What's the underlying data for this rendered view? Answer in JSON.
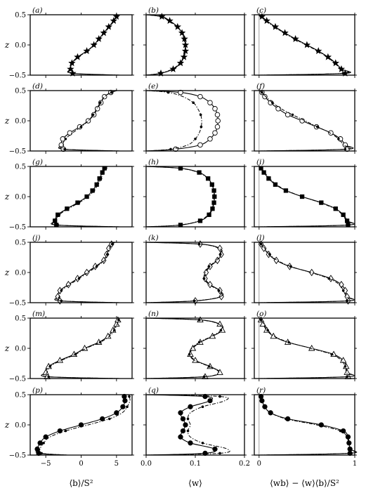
{
  "chart_data": {
    "type": "line",
    "layout": "6 rows x 3 columns of profile panels",
    "columns": [
      {
        "xlabel": "⟨b⟩/S²",
        "xlim": [
          -7.2,
          7.2
        ],
        "xticks": [
          -5,
          0,
          5
        ],
        "xtick_labels": [
          "−5",
          "0",
          "5"
        ]
      },
      {
        "xlabel": "⟨w⟩",
        "xlim": [
          0.0,
          0.2
        ],
        "xticks": [
          0.0,
          0.1,
          0.2
        ],
        "xtick_labels": [
          "0.0",
          "0.1",
          "0.2"
        ]
      },
      {
        "xlabel": "⟨wb⟩ − ⟨w⟩⟨b⟩/S²",
        "xlim": [
          -0.05,
          1.0
        ],
        "xticks": [
          0,
          1
        ],
        "xtick_labels": [
          "0",
          "1"
        ]
      }
    ],
    "ylabel": "z",
    "ylim": [
      -0.5,
      0.5
    ],
    "yticks": [
      -0.5,
      0.0,
      0.5
    ],
    "ytick_labels": [
      "−0.5",
      "0.0",
      "0.5"
    ],
    "z": [
      -0.5,
      -0.47,
      -0.4,
      -0.3,
      -0.2,
      -0.1,
      0.0,
      0.1,
      0.2,
      0.3,
      0.4,
      0.47,
      0.5
    ],
    "rows": [
      {
        "labels": [
          "(a)",
          "(b)",
          "(c)"
        ],
        "marker": "star",
        "open": false,
        "b_solid": [
          5.5,
          -1.2,
          -1.5,
          -1.3,
          -0.5,
          0.8,
          1.8,
          2.5,
          3.2,
          3.9,
          4.6,
          5.0,
          5.2
        ],
        "b_dashed": [
          5.5,
          -1.3,
          -1.6,
          -1.2,
          -0.4,
          0.9,
          1.9,
          2.6,
          3.3,
          4.0,
          4.7,
          5.1,
          5.4
        ],
        "w_solid": [
          0.0,
          0.03,
          0.055,
          0.07,
          0.077,
          0.08,
          0.08,
          0.078,
          0.073,
          0.064,
          0.048,
          0.032,
          0.0
        ],
        "w_dashed": [
          0.0,
          0.028,
          0.053,
          0.069,
          0.076,
          0.079,
          0.079,
          0.077,
          0.072,
          0.063,
          0.046,
          0.03,
          0.0
        ],
        "f_solid": [
          0.0,
          0.9,
          0.86,
          0.8,
          0.72,
          0.62,
          0.5,
          0.38,
          0.27,
          0.17,
          0.08,
          0.03,
          0.0
        ],
        "f_dashed": [
          0.0,
          0.88,
          0.85,
          0.79,
          0.71,
          0.61,
          0.49,
          0.37,
          0.26,
          0.16,
          0.07,
          0.02,
          0.0
        ]
      },
      {
        "labels": [
          "(d)",
          "(e)",
          "(f)"
        ],
        "marker": "circle",
        "open": true,
        "b_solid": [
          5.5,
          -2.5,
          -2.8,
          -2.6,
          -1.6,
          -0.2,
          1.0,
          1.8,
          2.3,
          2.8,
          3.3,
          4.2,
          5.0
        ],
        "b_dashed": [
          5.5,
          -2.3,
          -2.6,
          -2.2,
          -1.2,
          0.0,
          1.0,
          1.7,
          2.2,
          2.7,
          3.3,
          4.3,
          5.1
        ],
        "w_solid": [
          0.0,
          0.06,
          0.11,
          0.13,
          0.14,
          0.145,
          0.146,
          0.145,
          0.14,
          0.13,
          0.11,
          0.07,
          0.0
        ],
        "w_dashed": [
          0.0,
          0.05,
          0.085,
          0.1,
          0.108,
          0.112,
          0.113,
          0.111,
          0.105,
          0.096,
          0.075,
          0.045,
          0.0
        ],
        "f_solid": [
          0.0,
          0.92,
          0.9,
          0.85,
          0.75,
          0.6,
          0.45,
          0.3,
          0.2,
          0.12,
          0.06,
          0.03,
          0.0
        ],
        "f_dashed": [
          0.0,
          0.9,
          0.88,
          0.83,
          0.74,
          0.61,
          0.48,
          0.35,
          0.23,
          0.14,
          0.07,
          0.03,
          0.0
        ]
      },
      {
        "labels": [
          "(g)",
          "(h)",
          "(i)"
        ],
        "marker": "square",
        "open": false,
        "b_solid": [
          5.5,
          -3.5,
          -3.7,
          -3.3,
          -2.0,
          -0.5,
          0.8,
          1.6,
          2.2,
          2.6,
          3.0,
          3.3,
          3.5
        ],
        "b_dashed": [
          5.5,
          -3.3,
          -3.6,
          -3.1,
          -1.8,
          -0.3,
          1.0,
          1.8,
          2.4,
          2.8,
          3.2,
          3.5,
          3.7
        ],
        "w_solid": [
          0.0,
          0.07,
          0.11,
          0.128,
          0.135,
          0.138,
          0.139,
          0.138,
          0.134,
          0.126,
          0.108,
          0.07,
          0.0
        ],
        "w_dashed": [
          0.0,
          0.068,
          0.108,
          0.126,
          0.134,
          0.137,
          0.138,
          0.137,
          0.133,
          0.125,
          0.106,
          0.068,
          0.0
        ],
        "f_solid": [
          0.0,
          0.93,
          0.92,
          0.88,
          0.8,
          0.65,
          0.45,
          0.28,
          0.17,
          0.1,
          0.05,
          0.02,
          0.0
        ],
        "f_dashed": [
          0.0,
          0.92,
          0.91,
          0.87,
          0.79,
          0.64,
          0.45,
          0.29,
          0.18,
          0.11,
          0.06,
          0.02,
          0.0
        ]
      },
      {
        "labels": [
          "(j)",
          "(k)",
          "(l)"
        ],
        "marker": "diamond",
        "open": true,
        "b_solid": [
          5.5,
          -3.0,
          -3.3,
          -3.0,
          -1.8,
          -0.5,
          0.8,
          2.0,
          3.2,
          3.6,
          3.9,
          4.3,
          4.6
        ],
        "b_dashed": [
          5.5,
          -2.8,
          -3.1,
          -2.8,
          -1.6,
          -0.3,
          1.0,
          2.2,
          3.3,
          3.7,
          4.0,
          4.4,
          4.8
        ],
        "w_solid": [
          0.0,
          0.1,
          0.153,
          0.15,
          0.13,
          0.12,
          0.122,
          0.13,
          0.145,
          0.153,
          0.15,
          0.11,
          0.0
        ],
        "w_dashed": [
          0.0,
          0.098,
          0.151,
          0.148,
          0.128,
          0.118,
          0.12,
          0.128,
          0.143,
          0.151,
          0.148,
          0.108,
          0.0
        ],
        "f_solid": [
          0.0,
          0.93,
          0.92,
          0.9,
          0.86,
          0.75,
          0.55,
          0.32,
          0.18,
          0.1,
          0.05,
          0.02,
          0.0
        ],
        "f_dashed": [
          0.0,
          0.92,
          0.91,
          0.88,
          0.84,
          0.73,
          0.54,
          0.33,
          0.19,
          0.11,
          0.06,
          0.02,
          0.0
        ]
      },
      {
        "labels": [
          "(m)",
          "(n)",
          "(o)"
        ],
        "marker": "triangle",
        "open": true,
        "b_solid": [
          5.5,
          -4.8,
          -5.0,
          -4.6,
          -3.0,
          -1.0,
          0.5,
          2.5,
          3.8,
          4.5,
          5.0,
          5.2,
          5.3
        ],
        "b_dashed": [
          5.5,
          -4.6,
          -4.8,
          -4.4,
          -2.8,
          -0.8,
          0.7,
          2.7,
          4.0,
          4.7,
          5.1,
          5.3,
          5.4
        ],
        "w_solid": [
          0.0,
          0.12,
          0.15,
          0.13,
          0.1,
          0.09,
          0.095,
          0.11,
          0.135,
          0.155,
          0.15,
          0.11,
          0.0
        ],
        "w_dashed": [
          0.0,
          0.118,
          0.148,
          0.128,
          0.098,
          0.088,
          0.093,
          0.108,
          0.133,
          0.152,
          0.148,
          0.108,
          0.0
        ],
        "f_solid": [
          0.0,
          0.93,
          0.92,
          0.91,
          0.88,
          0.78,
          0.55,
          0.3,
          0.15,
          0.08,
          0.04,
          0.02,
          0.0
        ],
        "f_dashed": [
          0.0,
          0.92,
          0.91,
          0.9,
          0.86,
          0.76,
          0.54,
          0.31,
          0.16,
          0.09,
          0.05,
          0.02,
          0.0
        ]
      },
      {
        "labels": [
          "(p)",
          "(q)",
          "(r)"
        ],
        "marker": "filled-circle",
        "open": false,
        "b_solid": [
          -2.0,
          -6.0,
          -6.2,
          -5.8,
          -5.0,
          -3.0,
          0.0,
          3.0,
          5.0,
          5.9,
          6.2,
          6.1,
          6.0
        ],
        "b_dashed": [
          -1.8,
          -5.6,
          -5.8,
          -5.3,
          -4.4,
          -2.2,
          1.0,
          4.0,
          5.8,
          6.5,
          6.9,
          6.8,
          6.7
        ],
        "w_solid": [
          0.0,
          0.12,
          0.14,
          0.09,
          0.07,
          0.075,
          0.08,
          0.075,
          0.07,
          0.09,
          0.13,
          0.12,
          0.0
        ],
        "w_dashed": [
          0.0,
          0.15,
          0.165,
          0.115,
          0.09,
          0.085,
          0.09,
          0.085,
          0.09,
          0.115,
          0.16,
          0.15,
          0.0
        ],
        "f_solid": [
          0.0,
          0.95,
          0.95,
          0.94,
          0.93,
          0.88,
          0.65,
          0.3,
          0.12,
          0.06,
          0.03,
          0.02,
          0.0
        ],
        "f_dashed": [
          0.0,
          0.94,
          0.94,
          0.93,
          0.92,
          0.85,
          0.6,
          0.28,
          0.12,
          0.06,
          0.03,
          0.02,
          0.0
        ]
      }
    ]
  }
}
